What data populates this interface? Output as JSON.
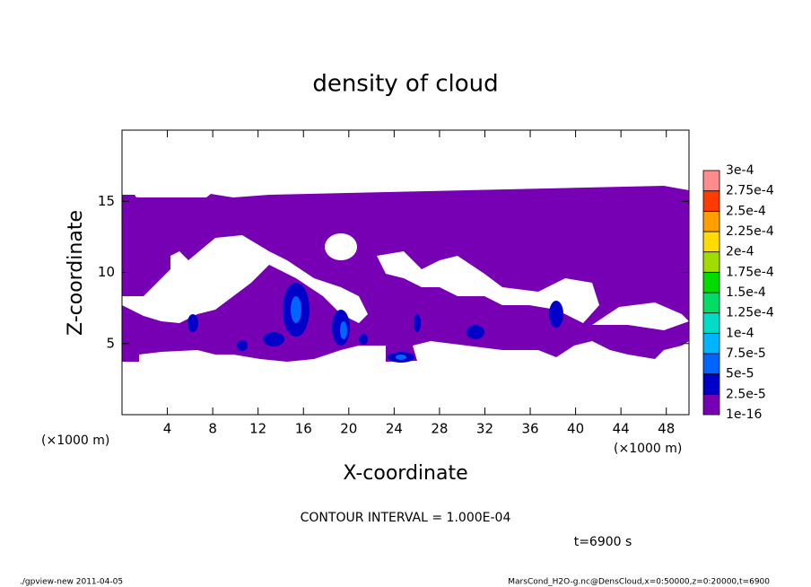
{
  "chart_data": {
    "type": "contour",
    "title": "density of cloud",
    "xlabel": "X-coordinate",
    "ylabel": "Z-coordinate",
    "x_unit": "(×1000 m)",
    "xlim": [
      0,
      50
    ],
    "ylim": [
      0,
      20
    ],
    "xticks": [
      4,
      8,
      12,
      16,
      20,
      24,
      28,
      32,
      36,
      40,
      44,
      48
    ],
    "yticks": [
      5,
      10,
      15
    ],
    "colorbar": {
      "levels": [
        {
          "value": 1e-16,
          "label": "1e-16"
        },
        {
          "value": 2.5e-05,
          "label": "2.5e-5"
        },
        {
          "value": 5e-05,
          "label": "5e-5"
        },
        {
          "value": 7.5e-05,
          "label": "7.5e-5"
        },
        {
          "value": 0.0001,
          "label": "1e-4"
        },
        {
          "value": 0.000125,
          "label": "1.25e-4"
        },
        {
          "value": 0.00015,
          "label": "1.5e-4"
        },
        {
          "value": 0.000175,
          "label": "1.75e-4"
        },
        {
          "value": 0.0002,
          "label": "2e-4"
        },
        {
          "value": 0.000225,
          "label": "2.25e-4"
        },
        {
          "value": 0.00025,
          "label": "2.5e-4"
        },
        {
          "value": 0.000275,
          "label": "2.75e-4"
        },
        {
          "value": 0.0003,
          "label": "3e-4"
        }
      ],
      "colors": [
        "#7800b4",
        "#0000c8",
        "#0064ff",
        "#00b4ff",
        "#00dcc8",
        "#00dc64",
        "#00dc00",
        "#a0dc00",
        "#ffdc00",
        "#ffa000",
        "#ff3c00",
        "#ff8c8c"
      ]
    },
    "contour_interval": "CONTOUR INTERVAL = 1.000E-04",
    "time": "t=6900 s",
    "footer_left": "./gpview-new  2011-04-05",
    "footer_right": "MarsCond_H2O-g.nc@DensCloud,x=0:50000,z=0:20000,t=6900"
  }
}
